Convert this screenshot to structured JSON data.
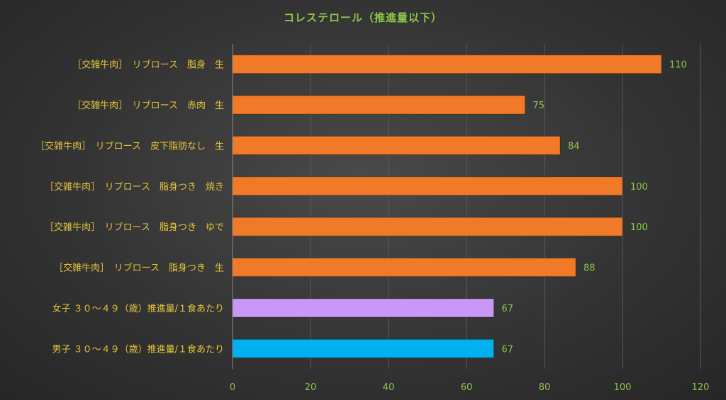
{
  "chart_data": {
    "type": "bar",
    "orientation": "horizontal",
    "title": "コレステロール（推進量以下）",
    "categories": [
      "［交雑牛肉］　リブロース　脂身　生",
      "［交雑牛肉］　リブロース　赤肉　生",
      "［交雑牛肉］　リブロース　皮下脂肪なし　生",
      "［交雑牛肉］　リブロース　脂身つき　焼き",
      "［交雑牛肉］　リブロース　脂身つき　ゆで",
      "［交雑牛肉］　リブロース　脂身つき　生",
      "女子 ３０～４９（歳）推進量/１食あたり",
      "男子 ３０～４９（歳）推進量/１食あたり"
    ],
    "values": [
      110,
      75,
      84,
      100,
      100,
      88,
      67,
      67
    ],
    "value_labels": [
      "110",
      "75",
      "84",
      "100",
      "100",
      "88",
      "67",
      "67"
    ],
    "bar_colors": [
      "#f07a28",
      "#f07a28",
      "#f07a28",
      "#f07a28",
      "#f07a28",
      "#f07a28",
      "#c998f7",
      "#00b0ef"
    ],
    "xlim": [
      0,
      120
    ],
    "xticks": [
      "0",
      "20",
      "40",
      "60",
      "80",
      "100",
      "120"
    ],
    "grid": true,
    "colors": {
      "title": "#8fc44a",
      "category_label": "#e3c53a",
      "value_label": "#8fc44a",
      "tick_label": "#8fc44a",
      "gridline": "#5a5a5a",
      "axis": "#8a8a8a"
    }
  }
}
